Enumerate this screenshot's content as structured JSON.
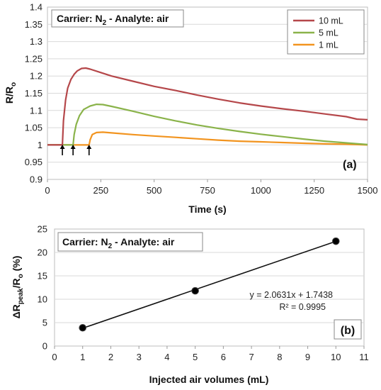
{
  "chart_data": [
    {
      "type": "line",
      "panel": "(a)",
      "title": "Carrier: N2 - Analyte: air",
      "xlabel": "Time (s)",
      "ylabel": "R/Ro",
      "xlim": [
        0,
        1500
      ],
      "ylim": [
        0.9,
        1.4
      ],
      "xticks": [
        "0",
        "250",
        "500",
        "750",
        "1000",
        "1250",
        "1500"
      ],
      "yticks": [
        "0.9",
        "0.95",
        "1",
        "1.05",
        "1.1",
        "1.15",
        "1.2",
        "1.25",
        "1.3",
        "1.35",
        "1.4"
      ],
      "grid": "horizontal",
      "legend_position": "top-right",
      "injection_arrows_x": [
        70,
        120,
        195
      ],
      "series": [
        {
          "name": "10 mL",
          "color": "#b5474a",
          "x": [
            0,
            70,
            75,
            85,
            95,
            110,
            125,
            140,
            160,
            180,
            200,
            250,
            300,
            400,
            500,
            600,
            700,
            800,
            900,
            1000,
            1100,
            1200,
            1300,
            1400,
            1450,
            1500
          ],
          "y": [
            1.0,
            1.0,
            1.07,
            1.13,
            1.165,
            1.19,
            1.205,
            1.215,
            1.222,
            1.223,
            1.22,
            1.21,
            1.2,
            1.185,
            1.17,
            1.158,
            1.145,
            1.133,
            1.122,
            1.113,
            1.105,
            1.098,
            1.09,
            1.082,
            1.075,
            1.073
          ]
        },
        {
          "name": "5 mL",
          "color": "#8ab34a",
          "x": [
            0,
            120,
            125,
            135,
            150,
            170,
            200,
            230,
            260,
            300,
            400,
            500,
            600,
            700,
            800,
            900,
            1000,
            1100,
            1200,
            1300,
            1400,
            1500
          ],
          "y": [
            1.0,
            1.0,
            1.03,
            1.06,
            1.085,
            1.103,
            1.113,
            1.118,
            1.117,
            1.112,
            1.098,
            1.083,
            1.07,
            1.058,
            1.048,
            1.039,
            1.031,
            1.024,
            1.017,
            1.011,
            1.006,
            1.001
          ]
        },
        {
          "name": "1 mL",
          "color": "#f2941f",
          "x": [
            0,
            195,
            200,
            210,
            230,
            260,
            300,
            400,
            500,
            600,
            700,
            800,
            900,
            1000,
            1100,
            1200,
            1300,
            1400,
            1500
          ],
          "y": [
            1.0,
            1.0,
            1.015,
            1.03,
            1.036,
            1.037,
            1.035,
            1.03,
            1.026,
            1.022,
            1.018,
            1.014,
            1.011,
            1.009,
            1.007,
            1.005,
            1.003,
            1.002,
            1.0
          ]
        }
      ]
    },
    {
      "type": "scatter",
      "panel": "(b)",
      "title": "Carrier: N2 - Analyte: air",
      "xlabel": "Injected air volumes (mL)",
      "ylabel": "ΔRpeak/Ro (%)",
      "xlim": [
        0,
        11
      ],
      "ylim": [
        0,
        25
      ],
      "xticks": [
        "0",
        "1",
        "2",
        "3",
        "4",
        "5",
        "6",
        "7",
        "8",
        "9",
        "10",
        "11"
      ],
      "yticks": [
        "0",
        "5",
        "10",
        "15",
        "20",
        "25"
      ],
      "grid": "horizontal",
      "points": {
        "x": [
          1,
          5,
          10
        ],
        "y": [
          3.9,
          11.8,
          22.4
        ]
      },
      "trendline": {
        "slope": 2.0631,
        "intercept": 1.7438,
        "x_range": [
          1,
          10
        ]
      },
      "equation": "y = 2.0631x + 1.7438",
      "r_squared": "R² = 0.9995"
    }
  ]
}
